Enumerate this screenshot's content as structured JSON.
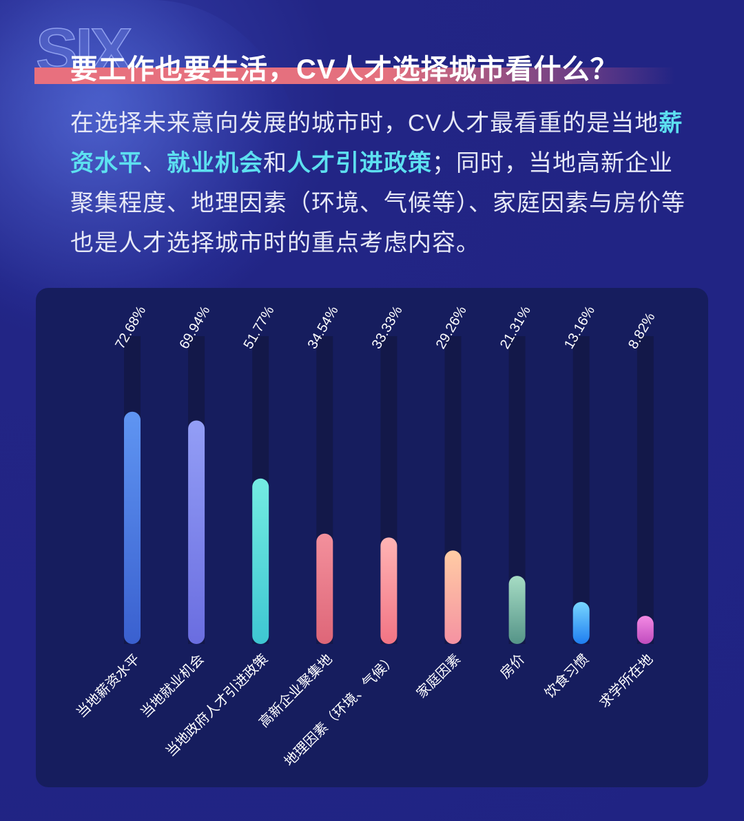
{
  "watermark": "SIX",
  "title": "要工作也要生活，CV人才选择城市看什么？",
  "intro": {
    "p1": "在选择未来意向发展的城市时，CV人才最看重的是当地",
    "h1": "薪资水平",
    "s1": "、",
    "h2": "就业机会",
    "s2": "和",
    "h3": "人才引进政策",
    "p2": "；同时，当地高新企业聚集程度、地理因素（环境、气候等）、家庭因素与房价等也是人才选择城市时的重点考虑内容。"
  },
  "chart_data": {
    "type": "bar",
    "title": "",
    "xlabel": "",
    "ylabel": "",
    "ylim": [
      0,
      100
    ],
    "unit": "%",
    "categories": [
      "当地薪资水平",
      "当地就业机会",
      "当地政府人才引进政策",
      "高新企业聚集地",
      "地理因素（环境、气候）",
      "家庭因素",
      "房价",
      "饮食习惯",
      "求学所在地"
    ],
    "values": [
      72.68,
      69.94,
      51.77,
      34.54,
      33.33,
      29.26,
      21.31,
      13.16,
      8.82
    ],
    "labels": [
      "72.68%",
      "69.94%",
      "51.77%",
      "34.54%",
      "33.33%",
      "29.26%",
      "21.31%",
      "13.16%",
      "8.82%"
    ],
    "colors": [
      [
        "#5f95f2",
        "#3a60cf"
      ],
      [
        "#939ef6",
        "#6a6de0"
      ],
      [
        "#74ece2",
        "#3ec6d2"
      ],
      [
        "#f3909c",
        "#de6678"
      ],
      [
        "#ffb4b4",
        "#f27484"
      ],
      [
        "#ffcca4",
        "#f592a2"
      ],
      [
        "#a6dcc4",
        "#559488"
      ],
      [
        "#78d6ff",
        "#1f7ef0"
      ],
      [
        "#f48ae4",
        "#c04cbe"
      ]
    ]
  }
}
